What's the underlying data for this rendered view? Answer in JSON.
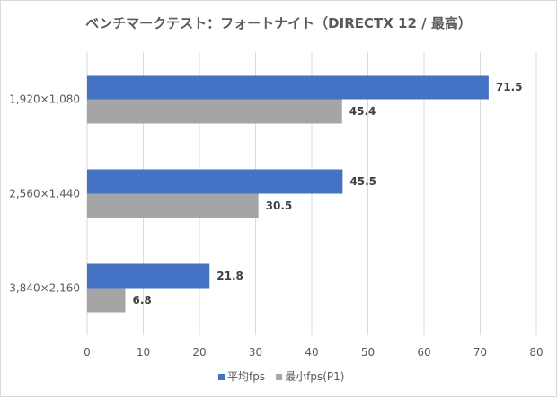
{
  "chart_data": {
    "type": "bar",
    "orientation": "horizontal",
    "title": "ベンチマークテスト：フォートナイト（DIRECTX 12 / 最高）",
    "categories": [
      "1,920×1,080",
      "2,560×1,440",
      "3,840×2,160"
    ],
    "series": [
      {
        "name": "平均fps",
        "color": "#4472c4",
        "values": [
          71.5,
          45.5,
          21.8
        ]
      },
      {
        "name": "最小fps(P1)",
        "color": "#a5a5a5",
        "values": [
          45.4,
          30.5,
          6.8
        ]
      }
    ],
    "xlim": [
      0,
      80
    ],
    "xticks": [
      0,
      10,
      20,
      30,
      40,
      50,
      60,
      70,
      80
    ],
    "xlabel": "",
    "ylabel": "",
    "grid": true,
    "legend": "bottom"
  }
}
